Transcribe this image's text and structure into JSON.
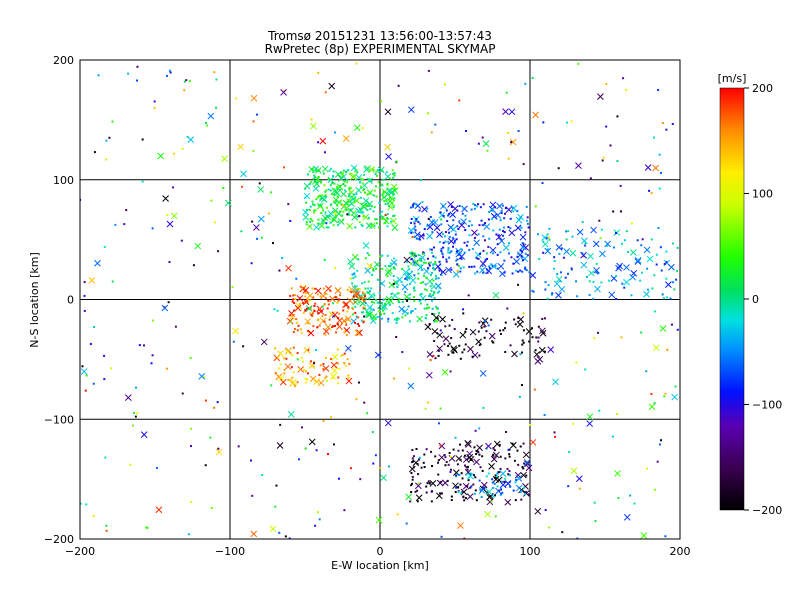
{
  "chart_data": {
    "type": "scatter",
    "title": "Tromsø 20151231 13:56:00-13:57:43",
    "subtitle": "RwPretec (8p) EXPERIMENTAL SKYMAP",
    "xlabel": "E-W location [km]",
    "ylabel": "N-S location [km]",
    "xlim": [
      -200,
      200
    ],
    "ylim": [
      -200,
      200
    ],
    "x_ticks": [
      -200,
      -100,
      0,
      100,
      200
    ],
    "y_ticks": [
      -200,
      -100,
      0,
      100,
      200
    ],
    "x_tick_labels": [
      "−200",
      "−100",
      "0",
      "100",
      "200"
    ],
    "y_tick_labels": [
      "−200",
      "−100",
      "0",
      "100",
      "200"
    ],
    "grid": true,
    "marker_legend": "dots and crosses",
    "colorbar": {
      "label": "[m/s]",
      "range": [
        -200,
        200
      ],
      "ticks": [
        200,
        100,
        0,
        -100,
        -200
      ],
      "tick_labels": [
        "200",
        "100",
        "0",
        "−100",
        "−200"
      ],
      "colormap": "rainbow (black → purple → blue → cyan → green → yellow → orange → red)"
    },
    "clusters": [
      {
        "name": "north-central green band",
        "x": [
          -50,
          10
        ],
        "y": [
          60,
          110
        ],
        "velocity": 20,
        "n": 320
      },
      {
        "name": "north-east cyan/blue band",
        "x": [
          20,
          100
        ],
        "y": [
          20,
          80
        ],
        "velocity": -70,
        "n": 300
      },
      {
        "name": "east cyan tail",
        "x": [
          100,
          200
        ],
        "y": [
          0,
          60
        ],
        "velocity": -40,
        "n": 120
      },
      {
        "name": "central mixed core",
        "x": [
          -20,
          40
        ],
        "y": [
          -20,
          40
        ],
        "velocity": 0,
        "n": 260
      },
      {
        "name": "west-central red/orange",
        "x": [
          -60,
          -10
        ],
        "y": [
          -30,
          10
        ],
        "velocity": 170,
        "n": 160
      },
      {
        "name": "south-west red/orange",
        "x": [
          -70,
          -20
        ],
        "y": [
          -70,
          -40
        ],
        "velocity": 150,
        "n": 80
      },
      {
        "name": "south-east dark band",
        "x": [
          20,
          100
        ],
        "y": [
          -170,
          -120
        ],
        "velocity": -180,
        "n": 180
      },
      {
        "name": "south-east cyan patch",
        "x": [
          50,
          100
        ],
        "y": [
          -165,
          -145
        ],
        "velocity": -50,
        "n": 50
      },
      {
        "name": "east-central dark",
        "x": [
          30,
          110
        ],
        "y": [
          -50,
          -10
        ],
        "velocity": -190,
        "n": 90
      },
      {
        "name": "background scatter",
        "x": [
          -200,
          200
        ],
        "y": [
          -200,
          200
        ],
        "velocity": null,
        "n": 450
      }
    ]
  }
}
